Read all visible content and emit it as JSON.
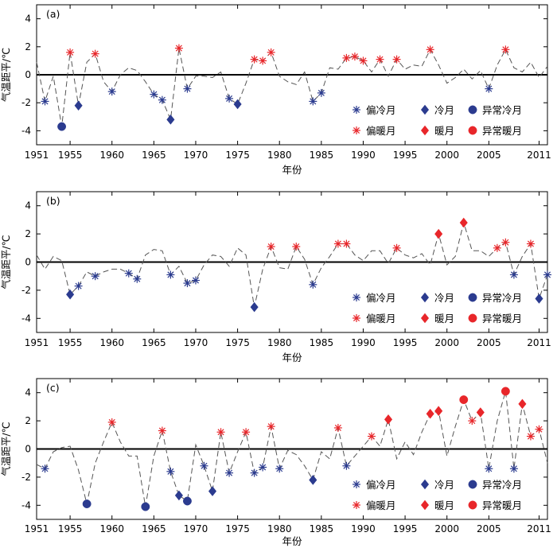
{
  "figure": {
    "ylabel": "气温距平/℃",
    "xlabel": "年份"
  },
  "legend": {
    "items": [
      {
        "key": "slight_cold",
        "label": "偏冷月"
      },
      {
        "key": "cold",
        "label": "冷月"
      },
      {
        "key": "extreme_cold",
        "label": "异常冷月"
      },
      {
        "key": "slight_warm",
        "label": "偏暖月"
      },
      {
        "key": "warm",
        "label": "暖月"
      },
      {
        "key": "extreme_warm",
        "label": "异常暖月"
      }
    ]
  },
  "colors": {
    "cold": "#2b3b8f",
    "warm": "#e8262a",
    "line": "#555555",
    "zero_line": "#000000"
  },
  "chart_data": [
    {
      "type": "line",
      "panel_label": "(a)",
      "xlim": [
        1951,
        2012
      ],
      "ylim": [
        -5,
        5
      ],
      "xticks": [
        1951,
        1955,
        1960,
        1965,
        1970,
        1975,
        1980,
        1985,
        1990,
        1995,
        2000,
        2005,
        2011
      ],
      "yticks": [
        -4,
        -2,
        0,
        2,
        4
      ],
      "x": [
        1951,
        1952,
        1953,
        1954,
        1955,
        1956,
        1957,
        1958,
        1959,
        1960,
        1961,
        1962,
        1963,
        1964,
        1965,
        1966,
        1967,
        1968,
        1969,
        1970,
        1971,
        1972,
        1973,
        1974,
        1975,
        1976,
        1977,
        1978,
        1979,
        1980,
        1981,
        1982,
        1983,
        1984,
        1985,
        1986,
        1987,
        1988,
        1989,
        1990,
        1991,
        1992,
        1993,
        1994,
        1995,
        1996,
        1997,
        1998,
        1999,
        2000,
        2001,
        2002,
        2003,
        2004,
        2005,
        2006,
        2007,
        2008,
        2009,
        2010,
        2011,
        2012
      ],
      "y": [
        0.9,
        -1.9,
        -0.1,
        -3.7,
        1.6,
        -2.2,
        0.9,
        1.5,
        -0.5,
        -1.2,
        0,
        0.5,
        0.3,
        -0.5,
        -1.4,
        -1.8,
        -3.2,
        1.9,
        -1.0,
        -0.1,
        -0.1,
        -0.2,
        0.2,
        -1.7,
        -2.1,
        -0.6,
        1.1,
        1.0,
        1.6,
        -0.1,
        -0.5,
        -0.7,
        0.2,
        -1.9,
        -1.3,
        0.5,
        0.4,
        1.2,
        1.3,
        1.0,
        0.2,
        1.1,
        -0.1,
        1.1,
        0.4,
        0.7,
        0.6,
        1.8,
        0.7,
        -0.6,
        -0.2,
        0.4,
        -0.3,
        0.3,
        -1.0,
        0.7,
        1.8,
        0.5,
        0.2,
        0.9,
        -0.2,
        0.6
      ],
      "markers": [
        {
          "x": 1952,
          "y": -1.9,
          "cls": "slight_cold"
        },
        {
          "x": 1954,
          "y": -3.7,
          "cls": "extreme_cold"
        },
        {
          "x": 1955,
          "y": 1.6,
          "cls": "slight_warm"
        },
        {
          "x": 1956,
          "y": -2.2,
          "cls": "cold"
        },
        {
          "x": 1958,
          "y": 1.5,
          "cls": "slight_warm"
        },
        {
          "x": 1960,
          "y": -1.2,
          "cls": "slight_cold"
        },
        {
          "x": 1965,
          "y": -1.4,
          "cls": "slight_cold"
        },
        {
          "x": 1966,
          "y": -1.8,
          "cls": "slight_cold"
        },
        {
          "x": 1967,
          "y": -3.2,
          "cls": "cold"
        },
        {
          "x": 1968,
          "y": 1.9,
          "cls": "slight_warm"
        },
        {
          "x": 1969,
          "y": -1.0,
          "cls": "slight_cold"
        },
        {
          "x": 1974,
          "y": -1.7,
          "cls": "slight_cold"
        },
        {
          "x": 1975,
          "y": -2.1,
          "cls": "cold"
        },
        {
          "x": 1977,
          "y": 1.1,
          "cls": "slight_warm"
        },
        {
          "x": 1978,
          "y": 1.0,
          "cls": "slight_warm"
        },
        {
          "x": 1979,
          "y": 1.6,
          "cls": "slight_warm"
        },
        {
          "x": 1984,
          "y": -1.9,
          "cls": "slight_cold"
        },
        {
          "x": 1985,
          "y": -1.3,
          "cls": "slight_cold"
        },
        {
          "x": 1988,
          "y": 1.2,
          "cls": "slight_warm"
        },
        {
          "x": 1989,
          "y": 1.3,
          "cls": "slight_warm"
        },
        {
          "x": 1990,
          "y": 1.0,
          "cls": "slight_warm"
        },
        {
          "x": 1992,
          "y": 1.1,
          "cls": "slight_warm"
        },
        {
          "x": 1994,
          "y": 1.1,
          "cls": "slight_warm"
        },
        {
          "x": 1998,
          "y": 1.8,
          "cls": "slight_warm"
        },
        {
          "x": 2005,
          "y": -1.0,
          "cls": "slight_cold"
        },
        {
          "x": 2007,
          "y": 1.8,
          "cls": "slight_warm"
        }
      ]
    },
    {
      "type": "line",
      "panel_label": "(b)",
      "xlim": [
        1951,
        2012
      ],
      "ylim": [
        -5,
        5
      ],
      "xticks": [
        1951,
        1955,
        1960,
        1965,
        1970,
        1975,
        1980,
        1985,
        1990,
        1995,
        2000,
        2005,
        2011
      ],
      "yticks": [
        -4,
        -2,
        0,
        2,
        4
      ],
      "x": [
        1951,
        1952,
        1953,
        1954,
        1955,
        1956,
        1957,
        1958,
        1959,
        1960,
        1961,
        1962,
        1963,
        1964,
        1965,
        1966,
        1967,
        1968,
        1969,
        1970,
        1971,
        1972,
        1973,
        1974,
        1975,
        1976,
        1977,
        1978,
        1979,
        1980,
        1981,
        1982,
        1983,
        1984,
        1985,
        1986,
        1987,
        1988,
        1989,
        1990,
        1991,
        1992,
        1993,
        1994,
        1995,
        1996,
        1997,
        1998,
        1999,
        2000,
        2001,
        2002,
        2003,
        2004,
        2005,
        2006,
        2007,
        2008,
        2009,
        2010,
        2011,
        2012
      ],
      "y": [
        0.5,
        -0.5,
        0.4,
        0.1,
        -2.3,
        -1.7,
        -0.7,
        -1.0,
        -0.7,
        -0.5,
        -0.5,
        -0.8,
        -1.2,
        0.5,
        0.9,
        0.8,
        -0.9,
        -0.3,
        -1.5,
        -1.3,
        -0.2,
        0.5,
        0.4,
        -0.3,
        1.0,
        0.5,
        -3.2,
        -0.5,
        1.1,
        -0.4,
        -0.5,
        1.1,
        0.2,
        -1.6,
        -0.4,
        0.4,
        1.3,
        1.3,
        0.5,
        0.1,
        0.8,
        0.8,
        -0.1,
        1.0,
        0.5,
        0.3,
        0.6,
        -0.2,
        2.0,
        -0.2,
        0.4,
        2.8,
        0.8,
        0.8,
        0.4,
        1.0,
        1.4,
        -0.9,
        0.4,
        1.3,
        -2.6,
        -0.9
      ],
      "markers": [
        {
          "x": 1955,
          "y": -2.3,
          "cls": "cold"
        },
        {
          "x": 1956,
          "y": -1.7,
          "cls": "slight_cold"
        },
        {
          "x": 1958,
          "y": -1.0,
          "cls": "slight_cold"
        },
        {
          "x": 1962,
          "y": -0.8,
          "cls": "slight_cold"
        },
        {
          "x": 1963,
          "y": -1.2,
          "cls": "slight_cold"
        },
        {
          "x": 1967,
          "y": -0.9,
          "cls": "slight_cold"
        },
        {
          "x": 1969,
          "y": -1.5,
          "cls": "slight_cold"
        },
        {
          "x": 1970,
          "y": -1.3,
          "cls": "slight_cold"
        },
        {
          "x": 1977,
          "y": -3.2,
          "cls": "cold"
        },
        {
          "x": 1979,
          "y": 1.1,
          "cls": "slight_warm"
        },
        {
          "x": 1982,
          "y": 1.1,
          "cls": "slight_warm"
        },
        {
          "x": 1984,
          "y": -1.6,
          "cls": "slight_cold"
        },
        {
          "x": 1987,
          "y": 1.3,
          "cls": "slight_warm"
        },
        {
          "x": 1988,
          "y": 1.3,
          "cls": "slight_warm"
        },
        {
          "x": 1994,
          "y": 1.0,
          "cls": "slight_warm"
        },
        {
          "x": 1999,
          "y": 2.0,
          "cls": "warm"
        },
        {
          "x": 2002,
          "y": 2.8,
          "cls": "warm"
        },
        {
          "x": 2006,
          "y": 1.0,
          "cls": "slight_warm"
        },
        {
          "x": 2007,
          "y": 1.4,
          "cls": "slight_warm"
        },
        {
          "x": 2008,
          "y": -0.9,
          "cls": "slight_cold"
        },
        {
          "x": 2010,
          "y": 1.3,
          "cls": "slight_warm"
        },
        {
          "x": 2011,
          "y": -2.6,
          "cls": "cold"
        },
        {
          "x": 2012,
          "y": -0.9,
          "cls": "slight_cold"
        }
      ]
    },
    {
      "type": "line",
      "panel_label": "(c)",
      "xlim": [
        1951,
        2012
      ],
      "ylim": [
        -5,
        5
      ],
      "xticks": [
        1951,
        1955,
        1960,
        1965,
        1970,
        1975,
        1980,
        1985,
        1990,
        1995,
        2000,
        2005,
        2011
      ],
      "yticks": [
        -4,
        -2,
        0,
        2,
        4
      ],
      "x": [
        1951,
        1952,
        1953,
        1954,
        1955,
        1956,
        1957,
        1958,
        1959,
        1960,
        1961,
        1962,
        1963,
        1964,
        1965,
        1966,
        1967,
        1968,
        1969,
        1970,
        1971,
        1972,
        1973,
        1974,
        1975,
        1976,
        1977,
        1978,
        1979,
        1980,
        1981,
        1982,
        1983,
        1984,
        1985,
        1986,
        1987,
        1988,
        1989,
        1990,
        1991,
        1992,
        1993,
        1994,
        1995,
        1996,
        1997,
        1998,
        1999,
        2000,
        2001,
        2002,
        2003,
        2004,
        2005,
        2006,
        2007,
        2008,
        2009,
        2010,
        2011,
        2012
      ],
      "y": [
        -1.1,
        -1.4,
        -0.2,
        0.1,
        0.2,
        -1.5,
        -3.9,
        -1.0,
        0.5,
        1.9,
        0.5,
        -0.5,
        -0.5,
        -4.1,
        -0.5,
        1.3,
        -1.6,
        -3.3,
        -3.7,
        0.3,
        -1.2,
        -3.0,
        1.2,
        -1.7,
        -0.2,
        1.2,
        -1.7,
        -1.3,
        1.6,
        -1.4,
        -0.1,
        -0.4,
        -1.2,
        -2.2,
        -0.2,
        -0.7,
        1.5,
        -1.2,
        -0.5,
        0.2,
        0.9,
        0.2,
        2.1,
        -0.7,
        0.5,
        -0.4,
        1.2,
        2.5,
        2.7,
        -0.5,
        1.6,
        3.5,
        2.0,
        2.6,
        -1.4,
        2.0,
        4.1,
        -1.4,
        3.2,
        0.9,
        1.4,
        -1.0
      ],
      "markers": [
        {
          "x": 1952,
          "y": -1.4,
          "cls": "slight_cold"
        },
        {
          "x": 1957,
          "y": -3.9,
          "cls": "extreme_cold"
        },
        {
          "x": 1960,
          "y": 1.9,
          "cls": "slight_warm"
        },
        {
          "x": 1964,
          "y": -4.1,
          "cls": "extreme_cold"
        },
        {
          "x": 1966,
          "y": 1.3,
          "cls": "slight_warm"
        },
        {
          "x": 1967,
          "y": -1.6,
          "cls": "slight_cold"
        },
        {
          "x": 1968,
          "y": -3.3,
          "cls": "cold"
        },
        {
          "x": 1969,
          "y": -3.7,
          "cls": "extreme_cold"
        },
        {
          "x": 1971,
          "y": -1.2,
          "cls": "slight_cold"
        },
        {
          "x": 1972,
          "y": -3.0,
          "cls": "cold"
        },
        {
          "x": 1973,
          "y": 1.2,
          "cls": "slight_warm"
        },
        {
          "x": 1974,
          "y": -1.7,
          "cls": "slight_cold"
        },
        {
          "x": 1976,
          "y": 1.2,
          "cls": "slight_warm"
        },
        {
          "x": 1977,
          "y": -1.7,
          "cls": "slight_cold"
        },
        {
          "x": 1978,
          "y": -1.3,
          "cls": "slight_cold"
        },
        {
          "x": 1979,
          "y": 1.6,
          "cls": "slight_warm"
        },
        {
          "x": 1980,
          "y": -1.4,
          "cls": "slight_cold"
        },
        {
          "x": 1984,
          "y": -2.2,
          "cls": "cold"
        },
        {
          "x": 1987,
          "y": 1.5,
          "cls": "slight_warm"
        },
        {
          "x": 1988,
          "y": -1.2,
          "cls": "slight_cold"
        },
        {
          "x": 1991,
          "y": 0.9,
          "cls": "slight_warm"
        },
        {
          "x": 1993,
          "y": 2.1,
          "cls": "warm"
        },
        {
          "x": 1998,
          "y": 2.5,
          "cls": "warm"
        },
        {
          "x": 1999,
          "y": 2.7,
          "cls": "warm"
        },
        {
          "x": 2002,
          "y": 3.5,
          "cls": "extreme_warm"
        },
        {
          "x": 2003,
          "y": 2.0,
          "cls": "slight_warm"
        },
        {
          "x": 2004,
          "y": 2.6,
          "cls": "warm"
        },
        {
          "x": 2005,
          "y": -1.4,
          "cls": "slight_cold"
        },
        {
          "x": 2007,
          "y": 4.1,
          "cls": "extreme_warm"
        },
        {
          "x": 2008,
          "y": -1.4,
          "cls": "slight_cold"
        },
        {
          "x": 2009,
          "y": 3.2,
          "cls": "warm"
        },
        {
          "x": 2010,
          "y": 0.9,
          "cls": "slight_warm"
        },
        {
          "x": 2011,
          "y": 1.4,
          "cls": "slight_warm"
        }
      ]
    }
  ]
}
